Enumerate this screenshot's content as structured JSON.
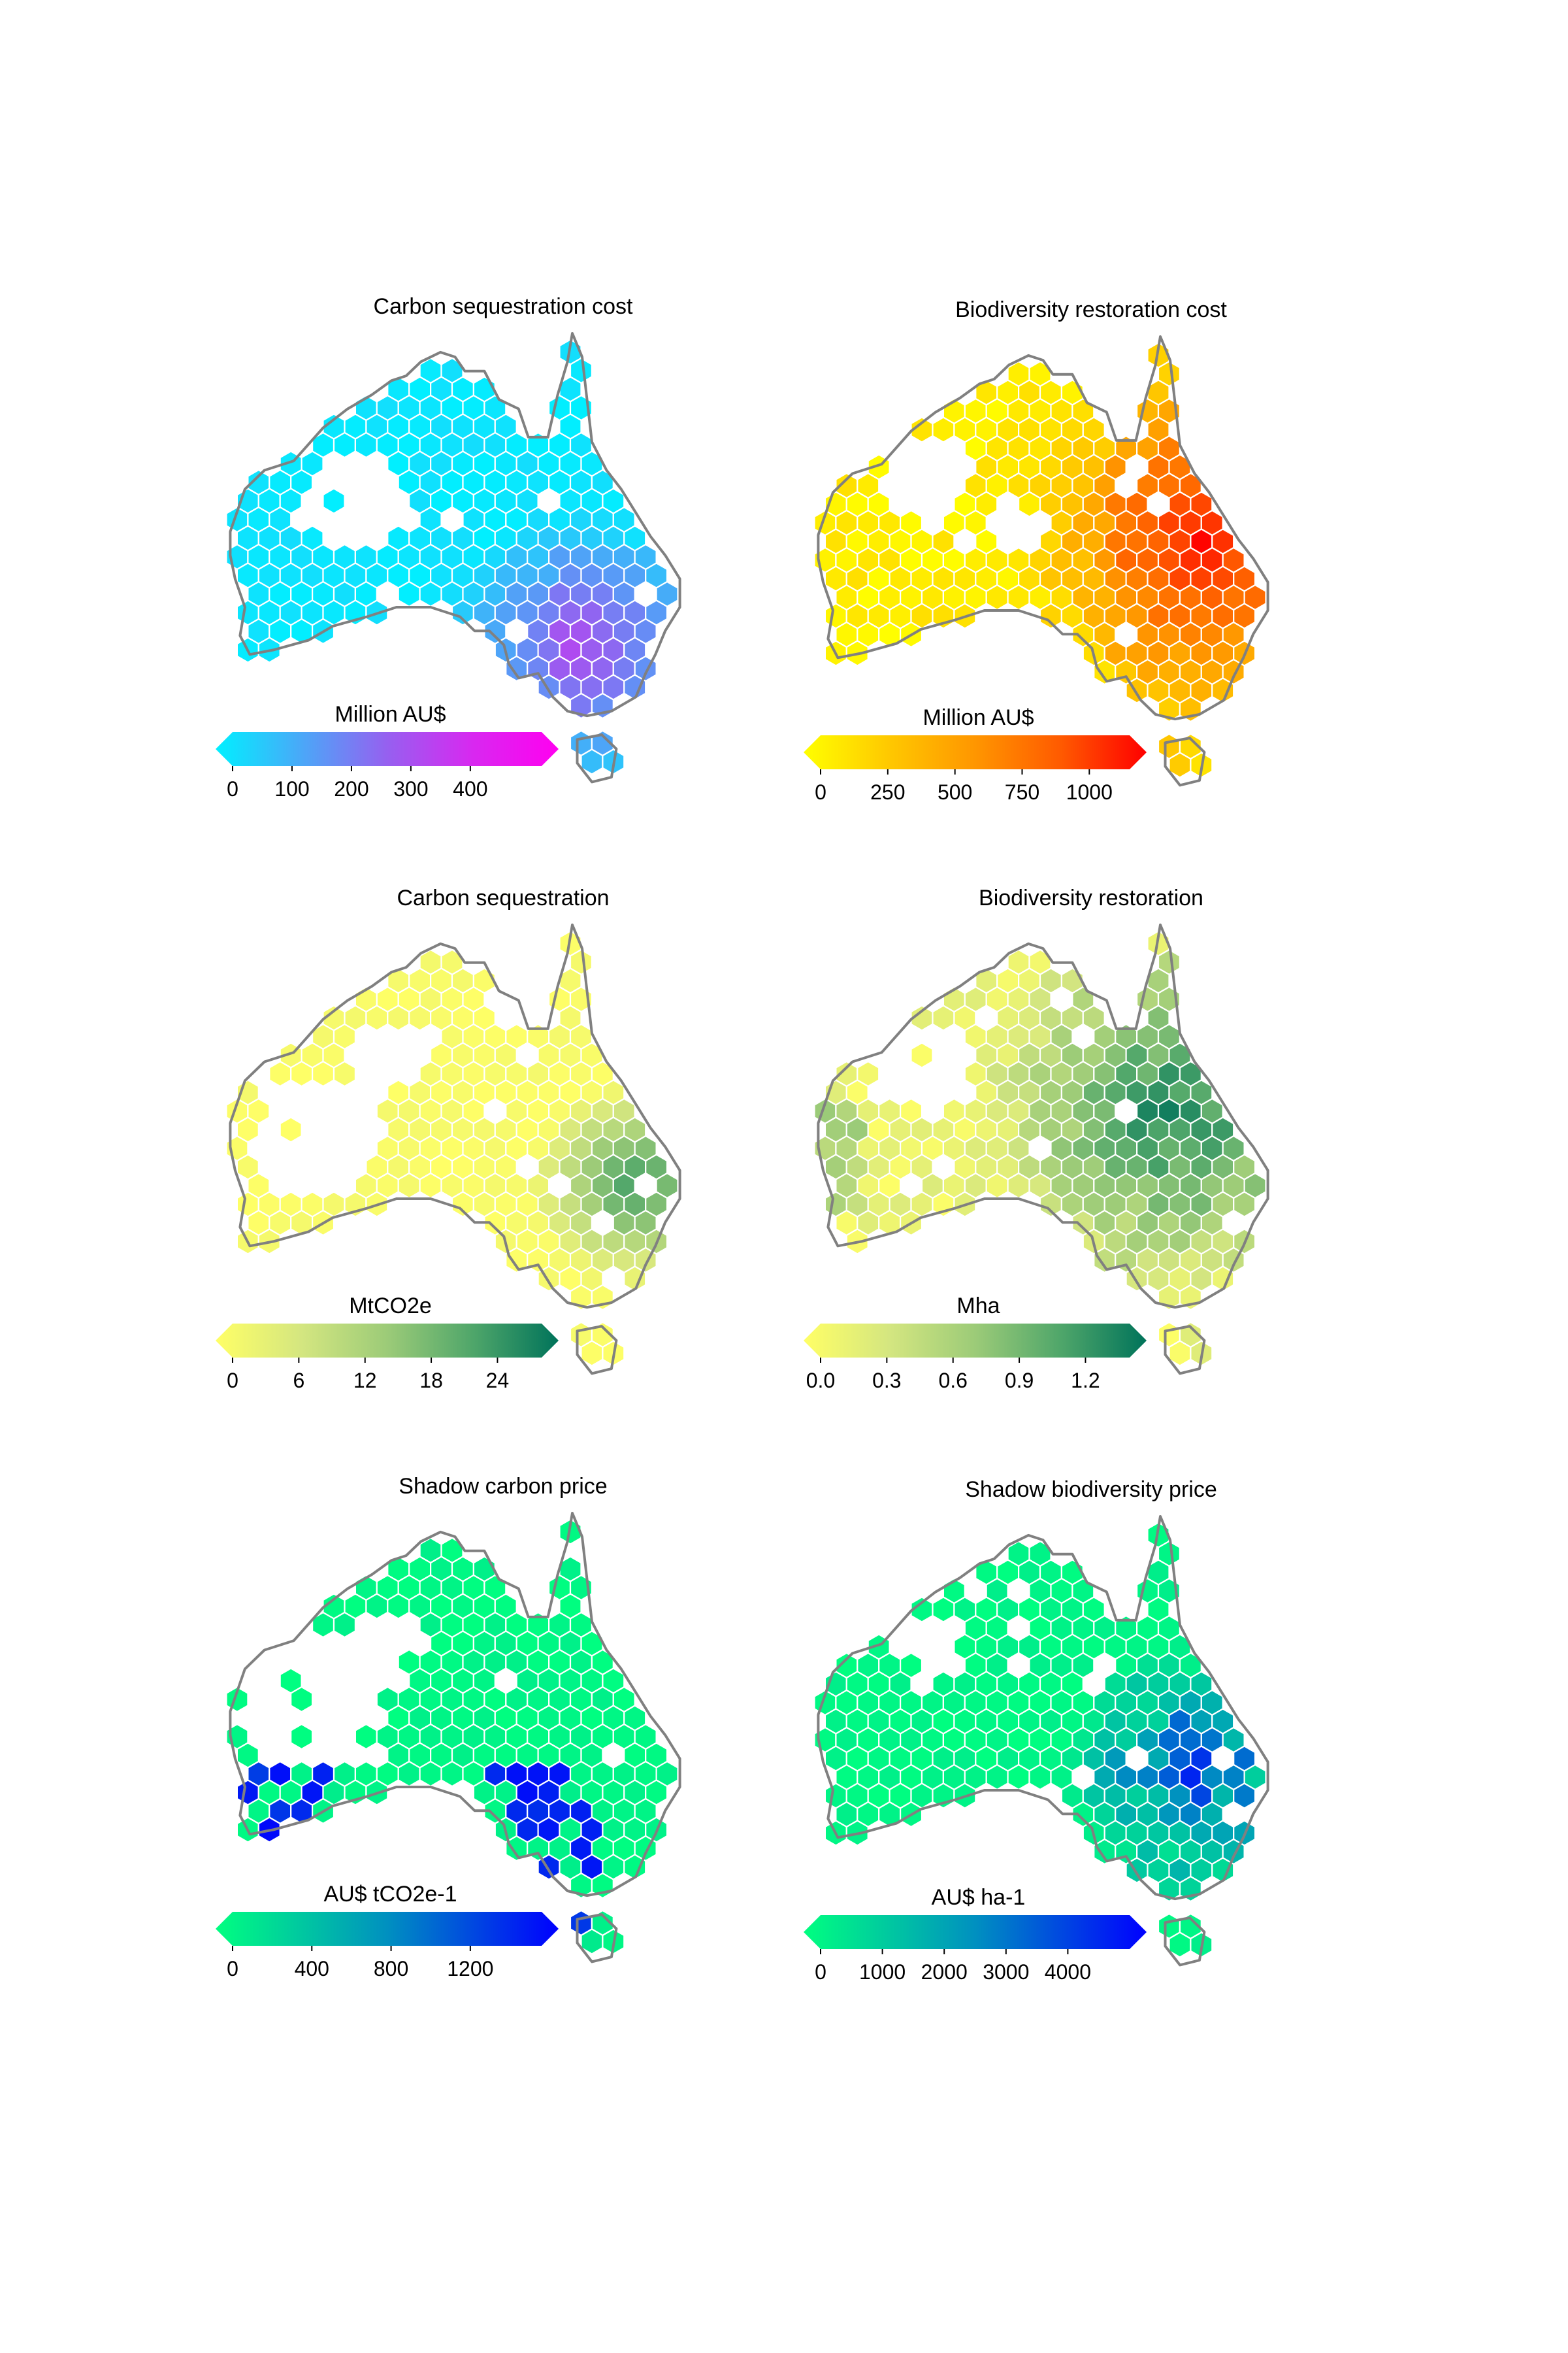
{
  "panels": [
    {
      "id": "carbon-cost",
      "title": "Carbon sequestration cost",
      "colorbar": {
        "label": "Million AU$",
        "ticks": [
          "0",
          "100",
          "200",
          "300",
          "400"
        ],
        "tick_values": [
          0,
          100,
          200,
          300,
          400
        ],
        "vmax": 520,
        "colors": [
          "#00f0ff",
          "#4aa8f8",
          "#9660f0",
          "#d828f0",
          "#ff00f0"
        ]
      },
      "hotspot": {
        "type": "southeast",
        "strength": 0.55
      }
    },
    {
      "id": "biodiversity-cost",
      "title": "Biodiversity restoration cost",
      "colorbar": {
        "label": "Million AU$",
        "ticks": [
          "0",
          "250",
          "500",
          "750",
          "1000"
        ],
        "tick_values": [
          0,
          250,
          500,
          750,
          1000
        ],
        "vmax": 1150,
        "colors": [
          "#ffff00",
          "#ffc800",
          "#ff9600",
          "#ff5a00",
          "#ff0000"
        ]
      },
      "hotspot": {
        "type": "east",
        "strength": 0.75
      }
    },
    {
      "id": "carbon-seq",
      "title": "Carbon sequestration",
      "colorbar": {
        "label": "MtCO2e",
        "ticks": [
          "0",
          "6",
          "12",
          "18",
          "24"
        ],
        "tick_values": [
          0,
          6,
          12,
          18,
          24
        ],
        "vmax": 28,
        "colors": [
          "#ffff66",
          "#d4e680",
          "#9ccb78",
          "#4fa66a",
          "#00735a"
        ]
      },
      "hotspot": {
        "type": "eastcoast",
        "strength": 0.8
      }
    },
    {
      "id": "biodiversity-restoration",
      "title": "Biodiversity restoration",
      "colorbar": {
        "label": "Mha",
        "ticks": [
          "0.0",
          "0.3",
          "0.6",
          "0.9",
          "1.2"
        ],
        "tick_values": [
          0,
          0.3,
          0.6,
          0.9,
          1.2
        ],
        "vmax": 1.4,
        "colors": [
          "#ffff66",
          "#d4e680",
          "#9ccb78",
          "#4fa66a",
          "#00735a"
        ]
      },
      "hotspot": {
        "type": "east-broad",
        "strength": 0.85
      }
    },
    {
      "id": "shadow-carbon-price",
      "title": "Shadow carbon price",
      "colorbar": {
        "label": "AU$ tCO2e-1",
        "ticks": [
          "0",
          "400",
          "800",
          "1200"
        ],
        "tick_values": [
          0,
          400,
          800,
          1200
        ],
        "vmax": 1560,
        "colors": [
          "#00ff80",
          "#00c8a0",
          "#0090c0",
          "#0048e0",
          "#0000ff"
        ]
      },
      "hotspot": {
        "type": "south-patchy",
        "strength": 0.9
      }
    },
    {
      "id": "shadow-biodiversity-price",
      "title": "Shadow biodiversity price",
      "colorbar": {
        "label": "AU$ ha-1",
        "ticks": [
          "0",
          "1000",
          "2000",
          "3000",
          "4000"
        ],
        "tick_values": [
          0,
          1000,
          2000,
          3000,
          4000
        ],
        "vmax": 5000,
        "colors": [
          "#00ff80",
          "#00c8a0",
          "#0090c0",
          "#0048e0",
          "#0000ff"
        ]
      },
      "hotspot": {
        "type": "southeast-patchy",
        "strength": 0.8
      }
    }
  ]
}
